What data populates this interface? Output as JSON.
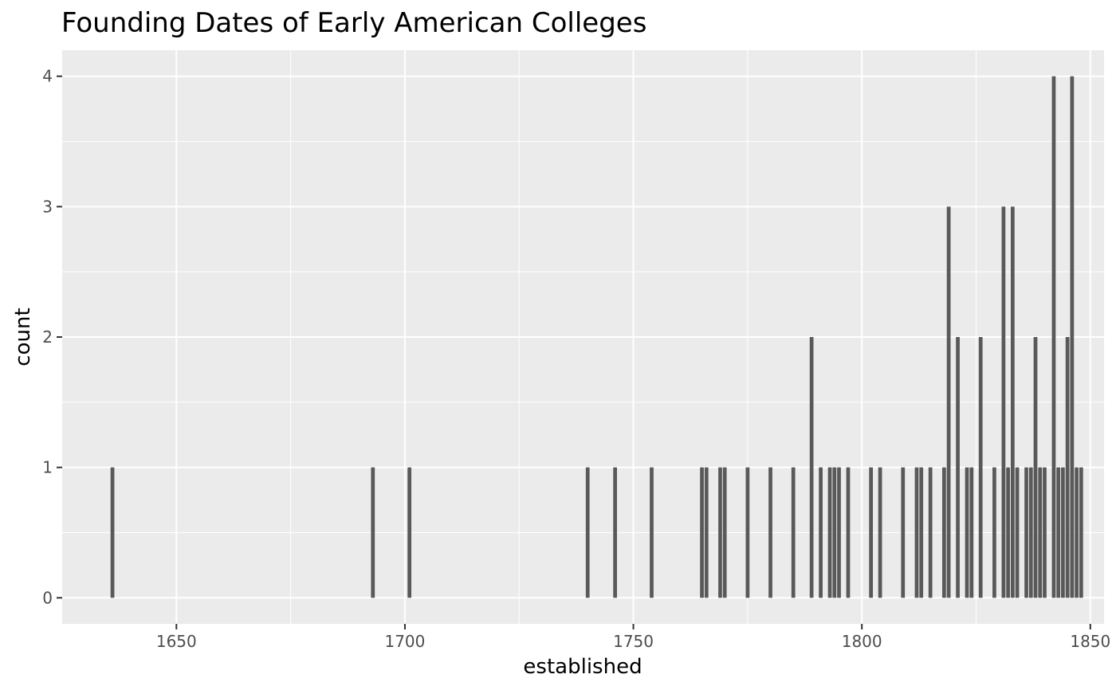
{
  "chart_data": {
    "type": "bar",
    "title": "Founding Dates of Early American Colleges",
    "xlabel": "established",
    "ylabel": "count",
    "xlim": [
      1625,
      1853
    ],
    "ylim": [
      -0.2,
      4.2
    ],
    "x_ticks": [
      1650,
      1700,
      1750,
      1800,
      1850
    ],
    "x_minor_ticks": [
      1675,
      1725,
      1775,
      1825
    ],
    "y_ticks": [
      0,
      1,
      2,
      3,
      4
    ],
    "y_minor_ticks": [
      0.5,
      1.5,
      2.5,
      3.5
    ],
    "grid": true,
    "legend": "none",
    "panel_background": "#ebebeb",
    "grid_color": "#ffffff",
    "bar_color": "#595959",
    "x": [
      1636,
      1693,
      1701,
      1740,
      1746,
      1754,
      1765,
      1766,
      1769,
      1770,
      1775,
      1780,
      1785,
      1789,
      1791,
      1793,
      1794,
      1795,
      1797,
      1802,
      1804,
      1809,
      1812,
      1813,
      1815,
      1818,
      1819,
      1821,
      1823,
      1824,
      1826,
      1829,
      1831,
      1832,
      1833,
      1834,
      1836,
      1837,
      1838,
      1839,
      1840,
      1842,
      1843,
      1844,
      1845,
      1846,
      1847,
      1848
    ],
    "values": [
      1,
      1,
      1,
      1,
      1,
      1,
      1,
      1,
      1,
      1,
      1,
      1,
      1,
      2,
      1,
      1,
      1,
      1,
      1,
      1,
      1,
      1,
      1,
      1,
      1,
      1,
      3,
      2,
      1,
      1,
      2,
      1,
      3,
      1,
      3,
      1,
      1,
      1,
      2,
      1,
      1,
      4,
      1,
      1,
      2,
      4,
      1,
      1
    ]
  }
}
